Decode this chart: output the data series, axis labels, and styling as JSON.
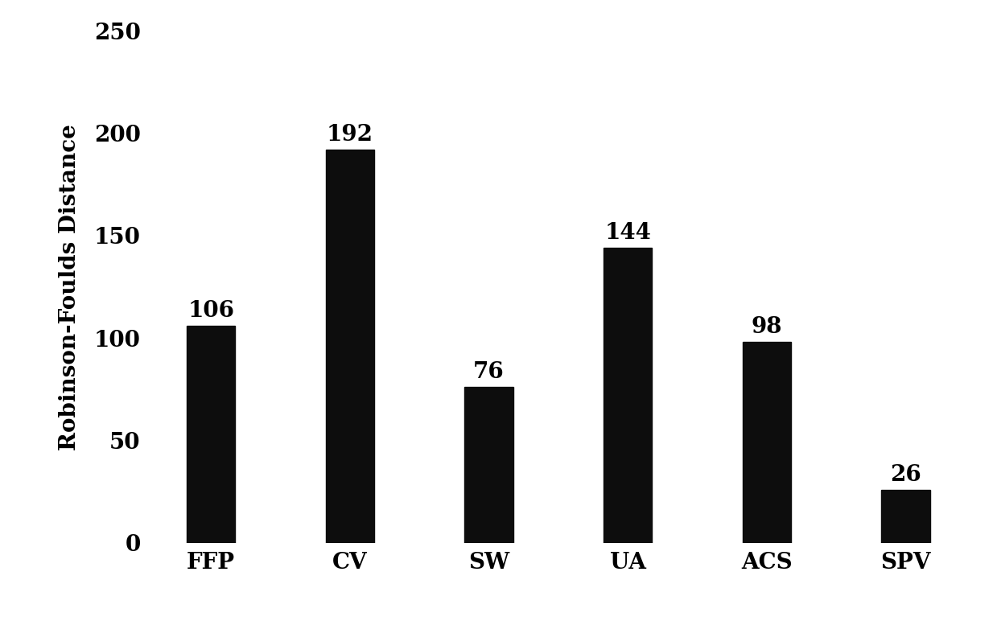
{
  "categories": [
    "FFP",
    "CV",
    "SW",
    "UA",
    "ACS",
    "SPV"
  ],
  "values": [
    106,
    192,
    76,
    144,
    98,
    26
  ],
  "bar_color": "#0d0d0d",
  "ylabel": "Robinson-Foulds Distance",
  "ylim": [
    0,
    250
  ],
  "yticks": [
    0,
    50,
    100,
    150,
    200,
    250
  ],
  "bar_width": 0.35,
  "tick_fontsize": 20,
  "value_fontsize": 20,
  "ylabel_fontsize": 20,
  "background_color": "#ffffff"
}
